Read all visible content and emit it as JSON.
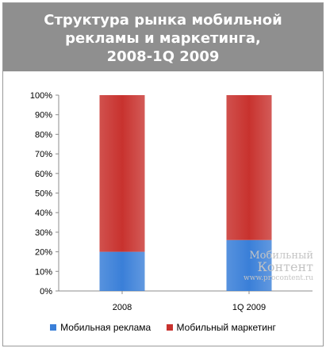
{
  "title_lines": [
    "Структура рынка мобильной",
    "рекламы и маркетинга,",
    "2008-1Q 2009"
  ],
  "watermark": {
    "line1": "Мобильный",
    "line2": "Контент",
    "line3": "www.procontent.ru"
  },
  "chart_data": {
    "type": "bar",
    "stacked": true,
    "title": "Структура рынка мобильной рекламы и маркетинга, 2008-1Q 2009",
    "categories": [
      "2008",
      "1Q 2009"
    ],
    "series": [
      {
        "name": "Мобильная реклама",
        "values": [
          20,
          26
        ],
        "color": "#3a7fd8"
      },
      {
        "name": "Мобильный маркетинг",
        "values": [
          80,
          74
        ],
        "color": "#c8322e"
      }
    ],
    "y_ticks": [
      "0%",
      "10%",
      "20%",
      "30%",
      "40%",
      "50%",
      "60%",
      "70%",
      "80%",
      "90%",
      "100%"
    ],
    "ylim": [
      0,
      100
    ],
    "grid": false,
    "legend_position": "bottom"
  }
}
